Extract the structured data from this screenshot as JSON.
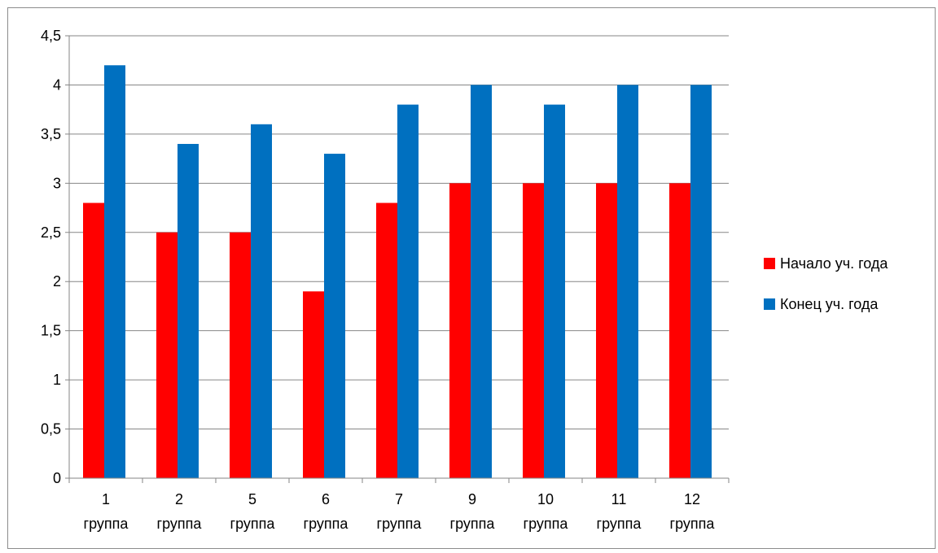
{
  "chart_data": {
    "type": "bar",
    "title": "",
    "xlabel": "",
    "ylabel": "",
    "ylim": [
      0,
      4.5
    ],
    "y_ticks": [
      "0",
      "0,5",
      "1",
      "1,5",
      "2",
      "2,5",
      "3",
      "3,5",
      "4",
      "4,5"
    ],
    "categories": [
      [
        "1",
        "группа"
      ],
      [
        "2",
        "группа"
      ],
      [
        "5",
        "группа"
      ],
      [
        "6",
        "группа"
      ],
      [
        "7",
        "группа"
      ],
      [
        "9",
        "группа"
      ],
      [
        "10",
        "группа"
      ],
      [
        "11",
        "группа"
      ],
      [
        "12",
        "группа"
      ]
    ],
    "series": [
      {
        "name": "Начало уч. года",
        "color": "#ff0000",
        "values": [
          2.8,
          2.5,
          2.5,
          1.9,
          2.8,
          3.0,
          3.0,
          3.0,
          3.0
        ]
      },
      {
        "name": "Конец уч. года",
        "color": "#0070c0",
        "values": [
          4.2,
          3.4,
          3.6,
          3.3,
          3.8,
          4.0,
          3.8,
          4.0,
          4.0
        ]
      }
    ],
    "grid": true,
    "legend_position": "right"
  }
}
